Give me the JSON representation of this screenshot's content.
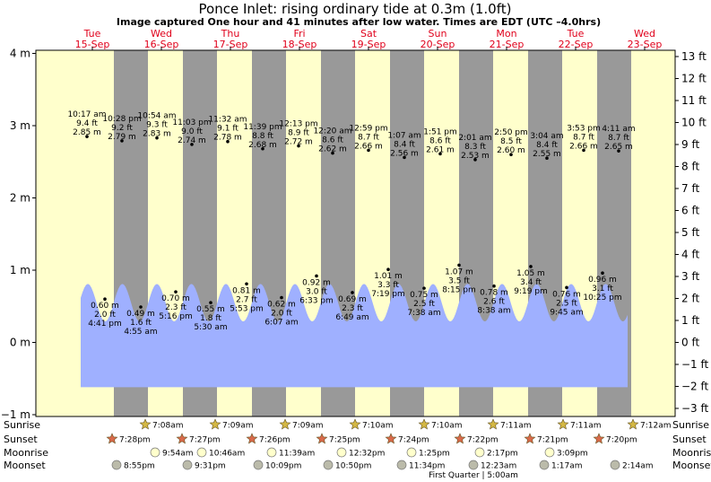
{
  "chart_data": {
    "type": "area",
    "title": "Ponce Inlet: rising  ordinary tide at 0.3m (1.0ft)",
    "subtitle": "Image captured One hour and 41 minutes after low water. Times are EDT (UTC –4.0hrs)",
    "y_left": {
      "range": [
        -1,
        4.1
      ],
      "ticks": [
        "−1 m",
        "0 m",
        "1 m",
        "2 m",
        "3 m",
        "4 m"
      ],
      "tick_values": [
        -1,
        0,
        1,
        2,
        3,
        4
      ]
    },
    "y_right": {
      "ticks": [
        "−3 ft",
        "−2 ft",
        "−1 ft",
        "0 ft",
        "1 ft",
        "2 ft",
        "3 ft",
        "4 ft",
        "5 ft",
        "6 ft",
        "7 ft",
        "8 ft",
        "9 ft",
        "10 ft",
        "11 ft",
        "12 ft",
        "13 ft"
      ],
      "tick_values": [
        -3,
        -2,
        -1,
        0,
        1,
        2,
        3,
        4,
        5,
        6,
        7,
        8,
        9,
        10,
        11,
        12,
        13
      ]
    },
    "days": [
      {
        "dow": "Tue",
        "date": "15-Sep"
      },
      {
        "dow": "Wed",
        "date": "16-Sep"
      },
      {
        "dow": "Thu",
        "date": "17-Sep"
      },
      {
        "dow": "Fri",
        "date": "18-Sep"
      },
      {
        "dow": "Sat",
        "date": "19-Sep"
      },
      {
        "dow": "Sun",
        "date": "20-Sep"
      },
      {
        "dow": "Mon",
        "date": "21-Sep"
      },
      {
        "dow": "Tue",
        "date": "22-Sep"
      },
      {
        "dow": "Wed",
        "date": "23-Sep"
      }
    ],
    "high_tides": [
      {
        "time": "10:17 am",
        "ft": "9.4 ft",
        "m": "2.85 m"
      },
      {
        "time": "10:28 pm",
        "ft": "9.2 ft",
        "m": "2.79 m"
      },
      {
        "time": "10:54 am",
        "ft": "9.3 ft",
        "m": "2.83 m"
      },
      {
        "time": "11:03 pm",
        "ft": "9.0 ft",
        "m": "2.74 m"
      },
      {
        "time": "11:32 am",
        "ft": "9.1 ft",
        "m": "2.78 m"
      },
      {
        "time": "11:39 pm",
        "ft": "8.8 ft",
        "m": "2.68 m"
      },
      {
        "time": "12:13 pm",
        "ft": "8.9 ft",
        "m": "2.72 m"
      },
      {
        "time": "12:20 am",
        "ft": "8.6 ft",
        "m": "2.62 m"
      },
      {
        "time": "12:59 pm",
        "ft": "8.7 ft",
        "m": "2.66 m"
      },
      {
        "time": "1:07 am",
        "ft": "8.4 ft",
        "m": "2.56 m"
      },
      {
        "time": "1:51 pm",
        "ft": "8.6 ft",
        "m": "2.61 m"
      },
      {
        "time": "2:01 am",
        "ft": "8.3 ft",
        "m": "2.53 m"
      },
      {
        "time": "2:50 pm",
        "ft": "8.5 ft",
        "m": "2.60 m"
      },
      {
        "time": "3:04 am",
        "ft": "8.4 ft",
        "m": "2.55 m"
      },
      {
        "time": "3:53 pm",
        "ft": "8.7 ft",
        "m": "2.66 m"
      },
      {
        "time": "4:11 am",
        "ft": "8.7 ft",
        "m": "2.65 m"
      }
    ],
    "low_tides": [
      {
        "m": "0.60 m",
        "ft": "2.0 ft",
        "time": "4:41 pm"
      },
      {
        "m": "0.49 m",
        "ft": "1.6 ft",
        "time": "4:55 am"
      },
      {
        "m": "0.70 m",
        "ft": "2.3 ft",
        "time": "5:16 pm"
      },
      {
        "m": "0.55 m",
        "ft": "1.8 ft",
        "time": "5:30 am"
      },
      {
        "m": "0.81 m",
        "ft": "2.7 ft",
        "time": "5:53 pm"
      },
      {
        "m": "0.62 m",
        "ft": "2.0 ft",
        "time": "6:07 am"
      },
      {
        "m": "0.92 m",
        "ft": "3.0 ft",
        "time": "6:33 pm"
      },
      {
        "m": "0.69 m",
        "ft": "2.3 ft",
        "time": "6:49 am"
      },
      {
        "m": "1.01 m",
        "ft": "3.3 ft",
        "time": "7:19 pm"
      },
      {
        "m": "0.75 m",
        "ft": "2.5 ft",
        "time": "7:38 am"
      },
      {
        "m": "1.07 m",
        "ft": "3.5 ft",
        "time": "8:15 pm"
      },
      {
        "m": "0.78 m",
        "ft": "2.6 ft",
        "time": "8:38 am"
      },
      {
        "m": "1.05 m",
        "ft": "3.4 ft",
        "time": "9:19 pm"
      },
      {
        "m": "0.76 m",
        "ft": "2.5 ft",
        "time": "9:45 am"
      },
      {
        "m": "0.96 m",
        "ft": "3.1 ft",
        "time": "10:25 pm"
      }
    ],
    "sunrise": [
      "7:08am",
      "7:09am",
      "7:09am",
      "7:10am",
      "7:10am",
      "7:11am",
      "7:11am",
      "7:12am"
    ],
    "sunset": [
      "7:28pm",
      "7:27pm",
      "7:26pm",
      "7:25pm",
      "7:24pm",
      "7:22pm",
      "7:21pm",
      "7:20pm"
    ],
    "moonrise": [
      "9:54am",
      "10:46am",
      "11:39am",
      "12:32pm",
      "1:25pm",
      "2:17pm",
      "3:09pm"
    ],
    "moonset": [
      "8:55pm",
      "9:31pm",
      "10:09pm",
      "10:50pm",
      "11:34pm",
      "12:23am",
      "1:17am",
      "2:14am"
    ],
    "row_labels": {
      "sunrise": "Sunrise",
      "sunset": "Sunset",
      "moonrise": "Moonrise",
      "moonset": "Moonset"
    },
    "moon_phase": "First Quarter | 5:00am",
    "colors": {
      "day": "#ffffcc",
      "night": "#999999",
      "water": "#9fb0ff",
      "date": "#e0001b",
      "sun": "#d4b844",
      "sunset": "#d9694a",
      "moonrise": "#ffffcc",
      "moonset": "#bbbbaa"
    }
  }
}
